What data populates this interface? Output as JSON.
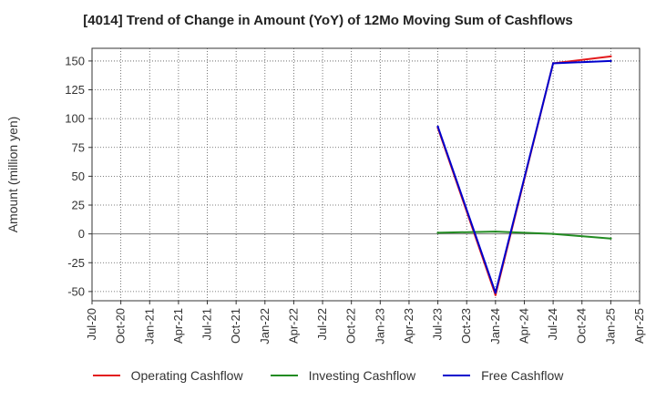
{
  "chart_data": {
    "type": "line",
    "title": "[4014]  Trend of Change in Amount (YoY) of 12Mo Moving Sum of Cashflows",
    "xlabel": "",
    "ylabel": "Amount (million yen)",
    "x_ticks": [
      "Jul-20",
      "Oct-20",
      "Jan-21",
      "Apr-21",
      "Jul-21",
      "Oct-21",
      "Jan-22",
      "Apr-22",
      "Jul-22",
      "Oct-22",
      "Jan-23",
      "Apr-23",
      "Jul-23",
      "Oct-23",
      "Jan-24",
      "Apr-24",
      "Jul-24",
      "Oct-24",
      "Jan-25",
      "Apr-25"
    ],
    "y_ticks": [
      -50,
      -25,
      0,
      25,
      50,
      75,
      100,
      125,
      150
    ],
    "ylim": [
      -58,
      161
    ],
    "grid": true,
    "legend_position": "bottom",
    "series": [
      {
        "name": "Operating Cashflow",
        "color": "#e31a1c",
        "x": [
          "Jul-23",
          "Jan-24",
          "Jul-24",
          "Jan-25"
        ],
        "y": [
          92,
          -53,
          148,
          154
        ]
      },
      {
        "name": "Investing Cashflow",
        "color": "#228b22",
        "x": [
          "Jul-23",
          "Jan-24",
          "Jul-24",
          "Jan-25"
        ],
        "y": [
          1,
          2,
          0,
          -4
        ]
      },
      {
        "name": "Free Cashflow",
        "color": "#0000cd",
        "x": [
          "Jul-23",
          "Jan-24",
          "Jul-24",
          "Jan-25"
        ],
        "y": [
          93,
          -51,
          148,
          150
        ]
      }
    ]
  }
}
